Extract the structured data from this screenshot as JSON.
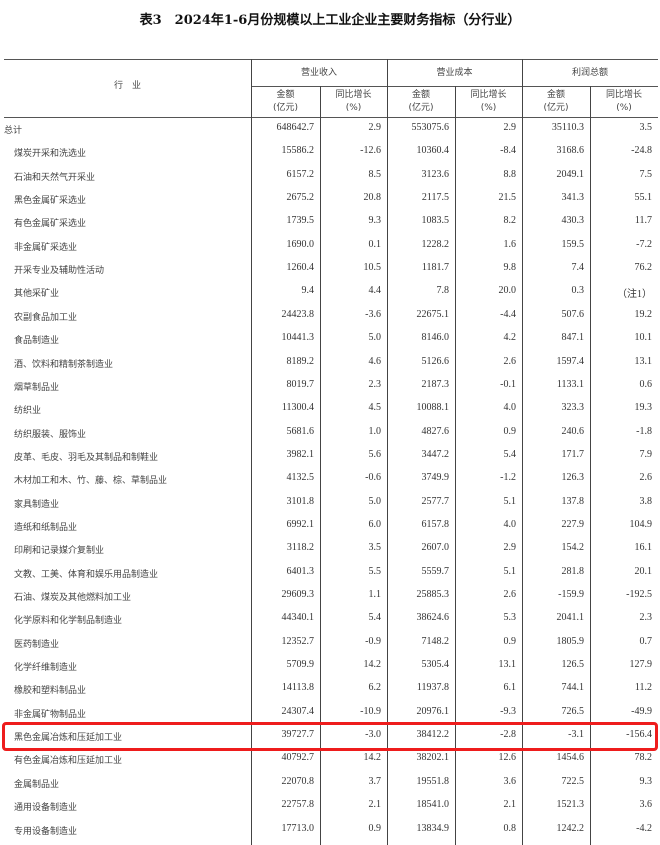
{
  "title": "表3　2024年1-6月份规模以上工业企业主要财务指标（分行业）",
  "header": {
    "industry": "行　业",
    "groups": [
      "营业收入",
      "营业成本",
      "利润总额"
    ],
    "sub": [
      {
        "amount": "金额",
        "amount_unit": "(亿元)",
        "growth": "同比增长",
        "growth_unit": "(%)"
      },
      {
        "amount": "金额",
        "amount_unit": "(亿元)",
        "growth": "同比增长",
        "growth_unit": "(%)"
      },
      {
        "amount": "金额",
        "amount_unit": "(亿元)",
        "growth": "同比增长",
        "growth_unit": "(%)"
      }
    ]
  },
  "rows": [
    [
      "总计",
      "648642.7",
      "2.9",
      "553075.6",
      "2.9",
      "35110.3",
      "3.5"
    ],
    [
      "煤炭开采和洗选业",
      "15586.2",
      "-12.6",
      "10360.4",
      "-8.4",
      "3168.6",
      "-24.8"
    ],
    [
      "石油和天然气开采业",
      "6157.2",
      "8.5",
      "3123.6",
      "8.8",
      "2049.1",
      "7.5"
    ],
    [
      "黑色金属矿采选业",
      "2675.2",
      "20.8",
      "2117.5",
      "21.5",
      "341.3",
      "55.1"
    ],
    [
      "有色金属矿采选业",
      "1739.5",
      "9.3",
      "1083.5",
      "8.2",
      "430.3",
      "11.7"
    ],
    [
      "非金属矿采选业",
      "1690.0",
      "0.1",
      "1228.2",
      "1.6",
      "159.5",
      "-7.2"
    ],
    [
      "开采专业及辅助性活动",
      "1260.4",
      "10.5",
      "1181.7",
      "9.8",
      "7.4",
      "76.2"
    ],
    [
      "其他采矿业",
      "9.4",
      "4.4",
      "7.8",
      "20.0",
      "0.3",
      "（注1）"
    ],
    [
      "农副食品加工业",
      "24423.8",
      "-3.6",
      "22675.1",
      "-4.4",
      "507.6",
      "19.2"
    ],
    [
      "食品制造业",
      "10441.3",
      "5.0",
      "8146.0",
      "4.2",
      "847.1",
      "10.1"
    ],
    [
      "酒、饮料和精制茶制造业",
      "8189.2",
      "4.6",
      "5126.6",
      "2.6",
      "1597.4",
      "13.1"
    ],
    [
      "烟草制品业",
      "8019.7",
      "2.3",
      "2187.3",
      "-0.1",
      "1133.1",
      "0.6"
    ],
    [
      "纺织业",
      "11300.4",
      "4.5",
      "10088.1",
      "4.0",
      "323.3",
      "19.3"
    ],
    [
      "纺织服装、服饰业",
      "5681.6",
      "1.0",
      "4827.6",
      "0.9",
      "240.6",
      "-1.8"
    ],
    [
      "皮革、毛皮、羽毛及其制品和制鞋业",
      "3982.1",
      "5.6",
      "3447.2",
      "5.4",
      "171.7",
      "7.9"
    ],
    [
      "木材加工和木、竹、藤、棕、草制品业",
      "4132.5",
      "-0.6",
      "3749.9",
      "-1.2",
      "126.3",
      "2.6"
    ],
    [
      "家具制造业",
      "3101.8",
      "5.0",
      "2577.7",
      "5.1",
      "137.8",
      "3.8"
    ],
    [
      "造纸和纸制品业",
      "6992.1",
      "6.0",
      "6157.8",
      "4.0",
      "227.9",
      "104.9"
    ],
    [
      "印刷和记录媒介复制业",
      "3118.2",
      "3.5",
      "2607.0",
      "2.9",
      "154.2",
      "16.1"
    ],
    [
      "文教、工美、体育和娱乐用品制造业",
      "6401.3",
      "5.5",
      "5559.7",
      "5.1",
      "281.8",
      "20.1"
    ],
    [
      "石油、煤炭及其他燃料加工业",
      "29609.3",
      "1.1",
      "25885.3",
      "2.6",
      "-159.9",
      "-192.5"
    ],
    [
      "化学原料和化学制品制造业",
      "44340.1",
      "5.4",
      "38624.6",
      "5.3",
      "2041.1",
      "2.3"
    ],
    [
      "医药制造业",
      "12352.7",
      "-0.9",
      "7148.2",
      "0.9",
      "1805.9",
      "0.7"
    ],
    [
      "化学纤维制造业",
      "5709.9",
      "14.2",
      "5305.4",
      "13.1",
      "126.5",
      "127.9"
    ],
    [
      "橡胶和塑料制品业",
      "14113.8",
      "6.2",
      "11937.8",
      "6.1",
      "744.1",
      "11.2"
    ],
    [
      "非金属矿物制品业",
      "24307.4",
      "-10.9",
      "20976.1",
      "-9.3",
      "726.5",
      "-49.9"
    ],
    [
      "黑色金属冶炼和压延加工业",
      "39727.7",
      "-3.0",
      "38412.2",
      "-2.8",
      "-3.1",
      "-156.4"
    ],
    [
      "有色金属冶炼和压延加工业",
      "40792.7",
      "14.2",
      "38202.1",
      "12.6",
      "1454.6",
      "78.2"
    ],
    [
      "金属制品业",
      "22070.8",
      "3.7",
      "19551.8",
      "3.6",
      "722.5",
      "9.3"
    ],
    [
      "通用设备制造业",
      "22757.8",
      "2.1",
      "18541.0",
      "2.1",
      "1521.3",
      "3.6"
    ],
    [
      "专用设备制造业",
      "17713.0",
      "0.9",
      "13834.9",
      "0.8",
      "1242.2",
      "-4.2"
    ]
  ],
  "highlighted_row": "黑色金属冶炼和压延加工业",
  "colors": {
    "highlight": "#ee1c1c"
  }
}
